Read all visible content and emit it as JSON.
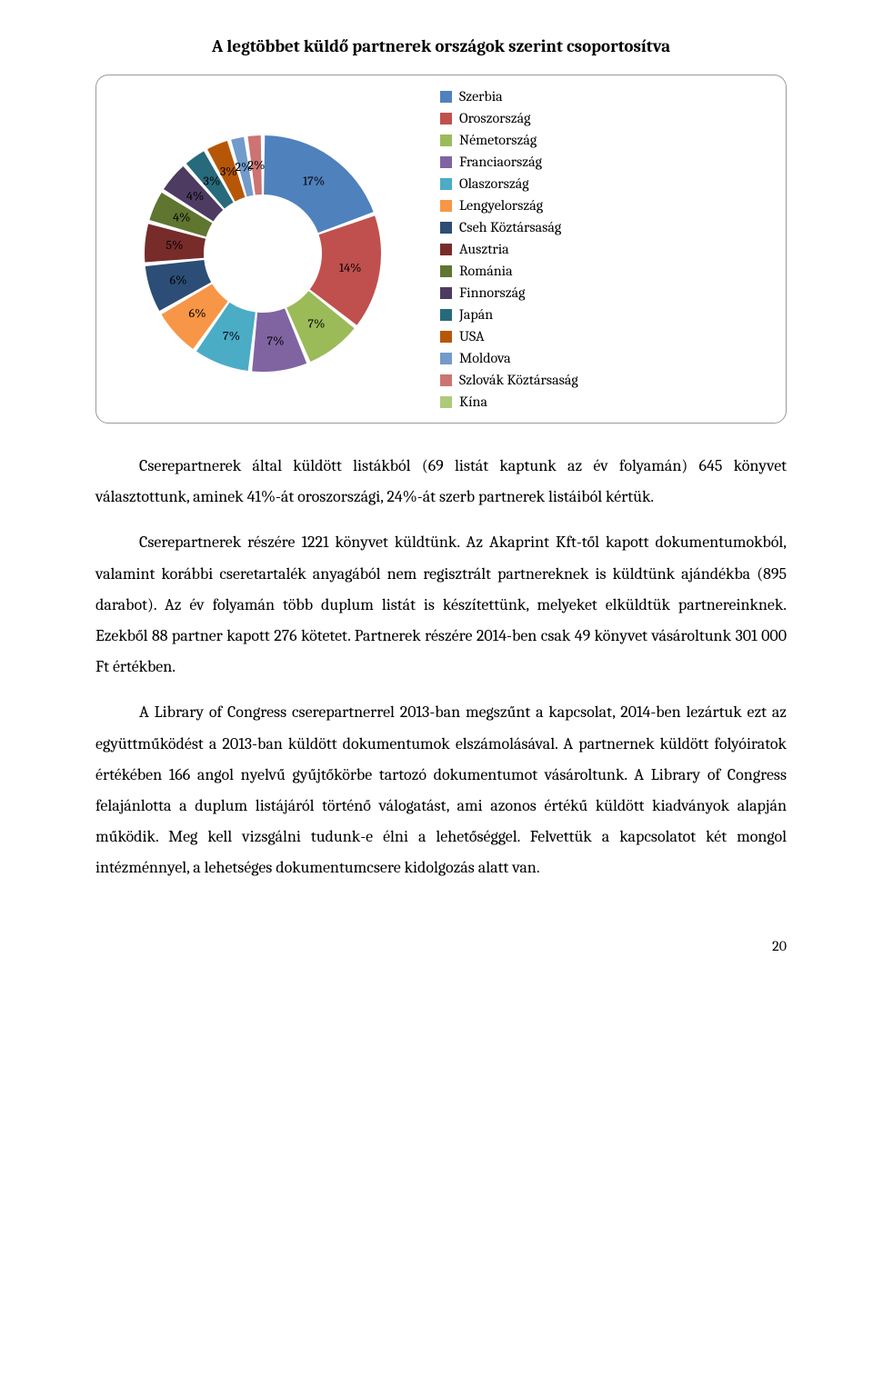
{
  "title": "A legtöbbet küldő partnerek országok szerint csoportosítva",
  "chart": {
    "type": "doughnut",
    "background_color": "#ffffff",
    "border_color": "#9a9a9a",
    "label_fontsize": 14,
    "legend_fontsize": 16,
    "inner_radius": 65,
    "outer_radius": 130,
    "segment_gap_deg": 2,
    "slices": [
      {
        "label": "Szerbia",
        "value": 17,
        "color": "#4f81bd",
        "text": "17%"
      },
      {
        "label": "Oroszország",
        "value": 14,
        "color": "#c0504d",
        "text": "14%"
      },
      {
        "label": "Németország",
        "value": 7,
        "color": "#9bbb59",
        "text": "7%"
      },
      {
        "label": "Franciaország",
        "value": 7,
        "color": "#8064a2",
        "text": "7%"
      },
      {
        "label": "Olaszország",
        "value": 7,
        "color": "#4bacc6",
        "text": "7%"
      },
      {
        "label": "Lengyelország",
        "value": 6,
        "color": "#f79646",
        "text": "6%"
      },
      {
        "label": "Cseh Köztársaság",
        "value": 6,
        "color": "#2c4d75",
        "text": "6%"
      },
      {
        "label": "Ausztria",
        "value": 5,
        "color": "#772c2a",
        "text": "5%"
      },
      {
        "label": "Románia",
        "value": 4,
        "color": "#5f7530",
        "text": "4%"
      },
      {
        "label": "Finnország",
        "value": 4,
        "color": "#4d3b62",
        "text": "4%"
      },
      {
        "label": "Japán",
        "value": 3,
        "color": "#276a7c",
        "text": "3%"
      },
      {
        "label": "USA",
        "value": 3,
        "color": "#b65708",
        "text": "3%"
      },
      {
        "label": "Moldova",
        "value": 2,
        "color": "#729aca",
        "text": "2%"
      },
      {
        "label": "Szlovák Köztársaság",
        "value": 2,
        "color": "#cd7371",
        "text": "2%"
      },
      {
        "label": "Kína",
        "value": 0,
        "color": "#afc97a",
        "text": ""
      }
    ]
  },
  "paragraphs": [
    "Cserepartnerek által küldött listákból (69 listát kaptunk az év folyamán) 645 könyvet választottunk, aminek 41%-át oroszországi, 24%-át szerb partnerek listáiból kértük.",
    "Cserepartnerek részére 1221 könyvet küldtünk. Az Akaprint Kft-től kapott dokumentumokból, valamint korábbi cseretartalék anyagából nem regisztrált partnereknek is küldtünk ajándékba (895 darabot). Az év folyamán több duplum listát is készítettünk, melyeket elküldtük partnereinknek. Ezekből 88 partner kapott 276 kötetet. Partnerek részére 2014-ben csak 49 könyvet vásároltunk 301 000 Ft értékben.",
    "A Library of Congress cserepartnerrel 2013-ban megszűnt a kapcsolat, 2014-ben lezártuk ezt az együttműködést a 2013-ban küldött dokumentumok elszámolásával. A partnernek küldött folyóiratok értékében 166 angol nyelvű gyűjtőkörbe tartozó dokumentumot vásároltunk. A Library of Congress felajánlotta a duplum listájáról történő válogatást, ami azonos értékű küldött kiadványok alapján működik. Meg kell vizsgálni tudunk-e élni a lehetőséggel. Felvettük a kapcsolatot két mongol intézménnyel, a lehetséges dokumentumcsere kidolgozás alatt van."
  ],
  "page_number": "20"
}
